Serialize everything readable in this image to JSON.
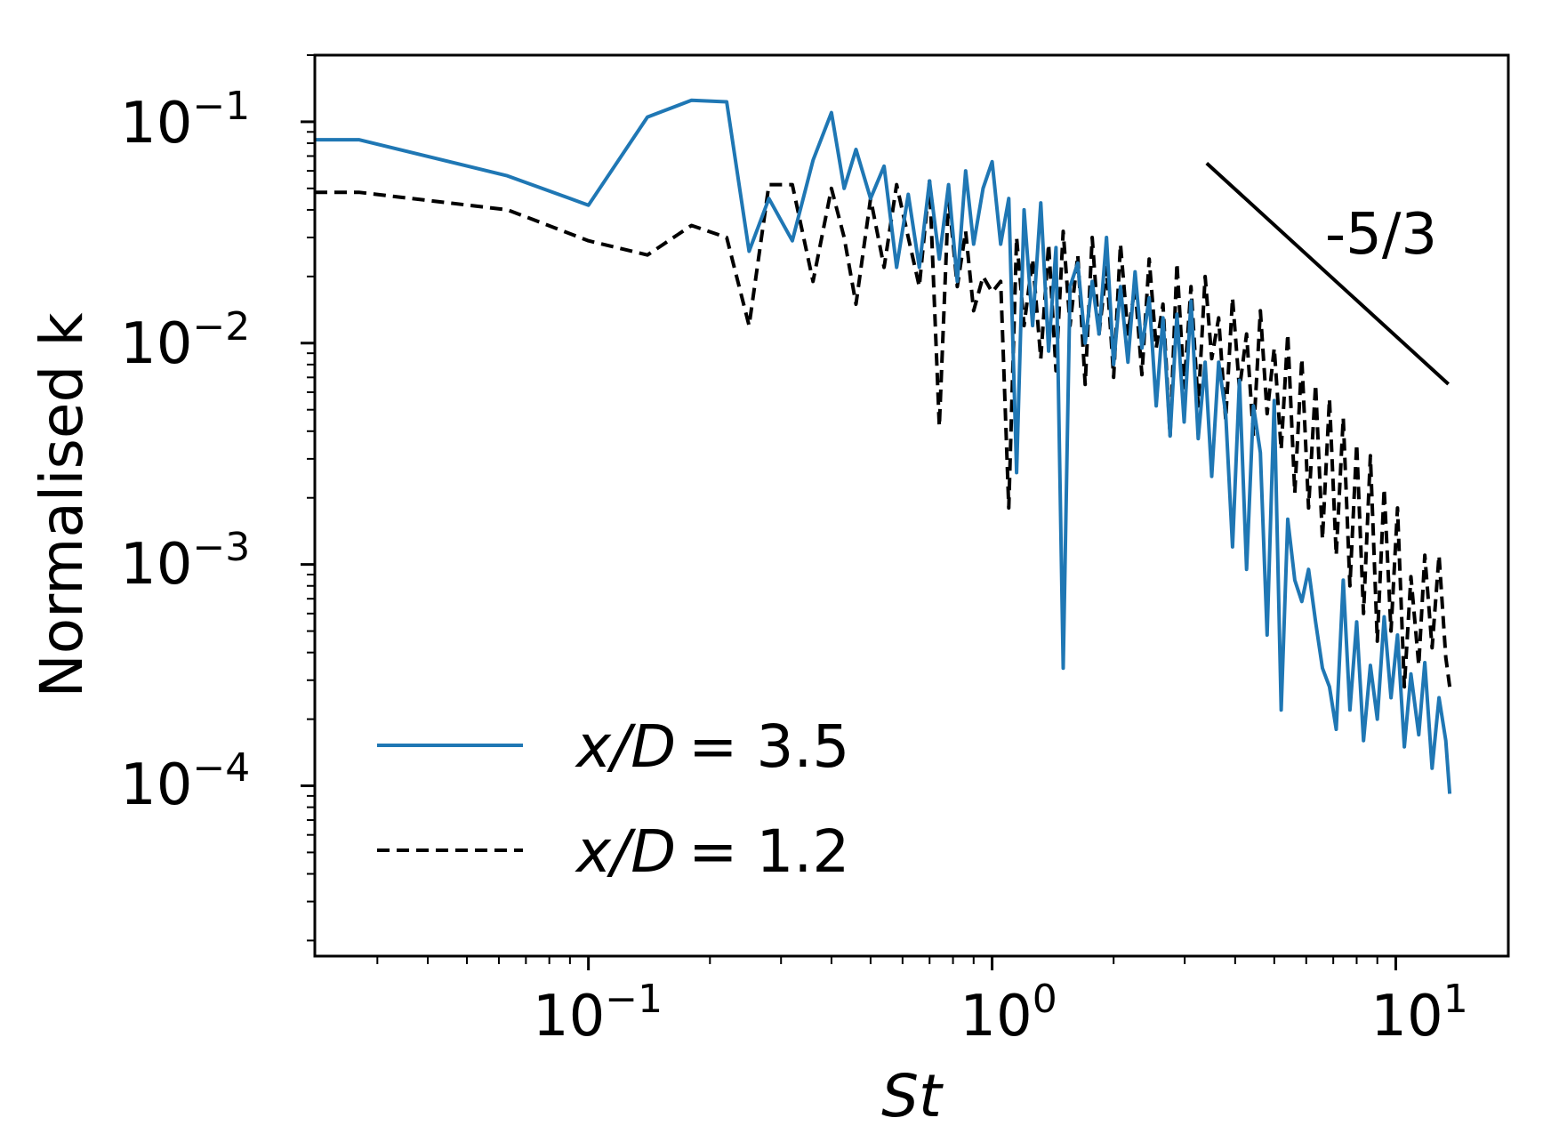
{
  "chart_data": {
    "type": "line",
    "xscale": "log",
    "yscale": "log",
    "xlabel": "St",
    "ylabel": "Normalised k",
    "xlim": [
      0.021,
      19.0
    ],
    "ylim": [
      1.7e-05,
      0.2
    ],
    "x_ticks": [
      {
        "base": "10",
        "exp": "−1",
        "value": 0.1
      },
      {
        "base": "10",
        "exp": "0",
        "value": 1
      },
      {
        "base": "10",
        "exp": "1",
        "value": 10
      }
    ],
    "y_ticks": [
      {
        "base": "10",
        "exp": "−1",
        "value": 0.1
      },
      {
        "base": "10",
        "exp": "−2",
        "value": 0.01
      },
      {
        "base": "10",
        "exp": "−3",
        "value": 0.001
      },
      {
        "base": "10",
        "exp": "−4",
        "value": 0.0001
      }
    ],
    "legend": {
      "position": "lower-left"
    },
    "series": [
      {
        "name": "x/D = 3.5",
        "label_var": "x/D",
        "label_eq": "= 3.5",
        "color": "#1f77b4",
        "style": "solid",
        "x": [
          0.021,
          0.027,
          0.063,
          0.1,
          0.14,
          0.18,
          0.22,
          0.25,
          0.28,
          0.32,
          0.36,
          0.4,
          0.43,
          0.46,
          0.5,
          0.54,
          0.58,
          0.62,
          0.66,
          0.7,
          0.74,
          0.78,
          0.82,
          0.86,
          0.9,
          0.95,
          1.0,
          1.05,
          1.1,
          1.15,
          1.2,
          1.26,
          1.32,
          1.38,
          1.44,
          1.5,
          1.56,
          1.63,
          1.7,
          1.77,
          1.84,
          1.92,
          2.0,
          2.08,
          2.17,
          2.26,
          2.35,
          2.45,
          2.55,
          2.65,
          2.76,
          2.87,
          2.99,
          3.11,
          3.24,
          3.37,
          3.5,
          3.64,
          3.79,
          3.94,
          4.1,
          4.27,
          4.44,
          4.62,
          4.8,
          5.0,
          5.2,
          5.4,
          5.62,
          5.85,
          6.08,
          6.33,
          6.58,
          6.85,
          7.12,
          7.41,
          7.7,
          8.0,
          8.32,
          8.65,
          9.0,
          9.36,
          9.73,
          10.1,
          10.5,
          10.9,
          11.4,
          11.8,
          12.3,
          12.8,
          13.3,
          13.6
        ],
        "y": [
          0.083,
          0.083,
          0.057,
          0.042,
          0.105,
          0.125,
          0.123,
          0.026,
          0.045,
          0.029,
          0.067,
          0.11,
          0.05,
          0.075,
          0.045,
          0.063,
          0.022,
          0.047,
          0.022,
          0.054,
          0.024,
          0.052,
          0.019,
          0.06,
          0.028,
          0.05,
          0.066,
          0.028,
          0.045,
          0.0026,
          0.04,
          0.012,
          0.043,
          0.0092,
          0.027,
          0.00034,
          0.018,
          0.023,
          0.01,
          0.019,
          0.011,
          0.03,
          0.008,
          0.018,
          0.0082,
          0.021,
          0.0095,
          0.016,
          0.0052,
          0.013,
          0.0038,
          0.0135,
          0.0044,
          0.0155,
          0.0037,
          0.0082,
          0.0025,
          0.0082,
          0.0048,
          0.0012,
          0.0068,
          0.00095,
          0.0052,
          0.0032,
          0.00048,
          0.0055,
          0.00022,
          0.0016,
          0.00085,
          0.00068,
          0.00095,
          0.00055,
          0.00034,
          0.00028,
          0.00018,
          0.00085,
          0.00022,
          0.00055,
          0.00016,
          0.00035,
          0.0002,
          0.00058,
          0.00025,
          0.00048,
          0.00015,
          0.00032,
          0.00017,
          0.00036,
          0.00012,
          0.00025,
          0.00016,
          9.2e-05
        ]
      },
      {
        "name": "x/D = 1.2",
        "label_var": "x/D",
        "label_eq": "= 1.2",
        "color": "#000000",
        "style": "dashed",
        "x": [
          0.021,
          0.027,
          0.063,
          0.1,
          0.14,
          0.18,
          0.22,
          0.25,
          0.28,
          0.32,
          0.36,
          0.4,
          0.43,
          0.46,
          0.5,
          0.54,
          0.58,
          0.62,
          0.66,
          0.7,
          0.74,
          0.78,
          0.82,
          0.86,
          0.9,
          0.95,
          1.0,
          1.05,
          1.1,
          1.15,
          1.2,
          1.26,
          1.32,
          1.38,
          1.44,
          1.5,
          1.56,
          1.63,
          1.7,
          1.77,
          1.84,
          1.92,
          2.0,
          2.08,
          2.17,
          2.26,
          2.35,
          2.45,
          2.55,
          2.65,
          2.76,
          2.87,
          2.99,
          3.11,
          3.24,
          3.37,
          3.5,
          3.64,
          3.79,
          3.94,
          4.1,
          4.27,
          4.44,
          4.62,
          4.8,
          5.0,
          5.2,
          5.4,
          5.62,
          5.85,
          6.08,
          6.33,
          6.58,
          6.85,
          7.12,
          7.41,
          7.7,
          8.0,
          8.32,
          8.65,
          9.0,
          9.36,
          9.73,
          10.1,
          10.5,
          10.9,
          11.4,
          11.8,
          12.3,
          12.8,
          13.3,
          13.6
        ],
        "y": [
          0.048,
          0.048,
          0.04,
          0.029,
          0.025,
          0.034,
          0.03,
          0.012,
          0.052,
          0.052,
          0.019,
          0.05,
          0.03,
          0.015,
          0.045,
          0.022,
          0.052,
          0.03,
          0.018,
          0.054,
          0.0042,
          0.046,
          0.018,
          0.032,
          0.014,
          0.02,
          0.017,
          0.019,
          0.0018,
          0.03,
          0.012,
          0.024,
          0.0085,
          0.028,
          0.0075,
          0.032,
          0.012,
          0.025,
          0.0065,
          0.03,
          0.011,
          0.022,
          0.007,
          0.028,
          0.011,
          0.018,
          0.0072,
          0.024,
          0.0095,
          0.015,
          0.0038,
          0.023,
          0.0063,
          0.018,
          0.0052,
          0.02,
          0.0085,
          0.013,
          0.0045,
          0.016,
          0.0062,
          0.011,
          0.0038,
          0.014,
          0.0048,
          0.0095,
          0.0033,
          0.011,
          0.0021,
          0.0085,
          0.0018,
          0.0065,
          0.0013,
          0.0056,
          0.0011,
          0.0046,
          0.0008,
          0.0035,
          0.0006,
          0.0031,
          0.00045,
          0.0022,
          0.0005,
          0.0018,
          0.00028,
          0.00088,
          0.00035,
          0.0011,
          0.00042,
          0.0011,
          0.00038,
          0.00028
        ]
      }
    ],
    "reference_line": {
      "label": "-5/3",
      "slope": -1.6667,
      "x": [
        3.4,
        13.5
      ],
      "y_start": 0.065
    }
  }
}
